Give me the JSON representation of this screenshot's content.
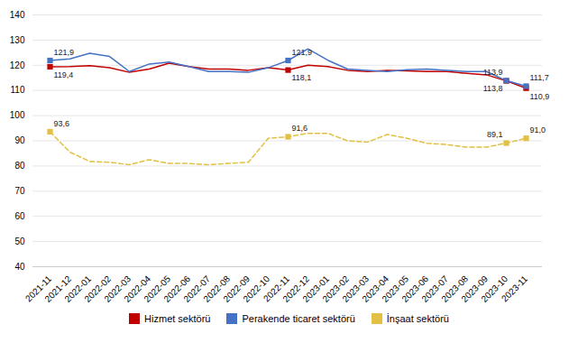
{
  "chart_data": {
    "type": "line",
    "categories": [
      "2021-11",
      "2021-12",
      "2022-01",
      "2022-02",
      "2022-03",
      "2022-04",
      "2022-05",
      "2022-06",
      "2022-07",
      "2022-08",
      "2022-09",
      "2022-10",
      "2022-11",
      "2022-12",
      "2023-01",
      "2023-02",
      "2023-03",
      "2023-04",
      "2023-05",
      "2023-06",
      "2023-07",
      "2023-08",
      "2023-09",
      "2023-10",
      "2023-11"
    ],
    "ylim": [
      40,
      140
    ],
    "yticks": [
      40,
      50,
      60,
      70,
      80,
      90,
      100,
      110,
      120,
      130,
      140
    ],
    "grid": true,
    "legend": "bottom",
    "series": [
      {
        "name": "Hizmet sektörü",
        "color": "#c00000",
        "marker": "square",
        "line_style": "solid",
        "values": [
          119.4,
          119.5,
          119.8,
          119.0,
          117.2,
          118.5,
          120.8,
          119.5,
          118.5,
          118.5,
          118.0,
          119.0,
          118.1,
          120.0,
          119.5,
          118.0,
          117.5,
          118.0,
          117.8,
          117.5,
          117.5,
          116.8,
          116.2,
          113.8,
          110.9
        ],
        "value_labels": [
          "119,4",
          null,
          null,
          null,
          null,
          null,
          null,
          null,
          null,
          null,
          null,
          null,
          "118,1",
          null,
          null,
          null,
          null,
          null,
          null,
          null,
          null,
          null,
          null,
          "113,8",
          "110,9"
        ]
      },
      {
        "name": "Perakende ticaret sektörü",
        "color": "#4472c4",
        "marker": "square",
        "line_style": "solid",
        "values": [
          121.9,
          122.5,
          124.8,
          123.5,
          117.5,
          120.5,
          121.3,
          119.5,
          117.5,
          117.5,
          117.2,
          119.0,
          121.9,
          126.5,
          122.0,
          118.5,
          118.0,
          117.5,
          118.2,
          118.5,
          118.0,
          117.5,
          117.5,
          113.9,
          111.7
        ],
        "value_labels": [
          "121,9",
          null,
          null,
          null,
          null,
          null,
          null,
          null,
          null,
          null,
          null,
          null,
          "121,9",
          null,
          null,
          null,
          null,
          null,
          null,
          null,
          null,
          null,
          null,
          "113,9",
          "111,7"
        ]
      },
      {
        "name": "İnşaat sektörü",
        "color": "#e2c044",
        "marker": "square",
        "line_style": "dashed",
        "values": [
          93.6,
          85.5,
          81.8,
          81.5,
          80.5,
          82.5,
          81.0,
          81.0,
          80.5,
          81.0,
          81.5,
          91.0,
          91.6,
          93.0,
          93.0,
          90.0,
          89.5,
          92.5,
          91.0,
          89.0,
          88.5,
          87.5,
          87.5,
          89.1,
          91.0
        ],
        "value_labels": [
          "93,6",
          null,
          null,
          null,
          null,
          null,
          null,
          null,
          null,
          null,
          null,
          null,
          "91,6",
          null,
          null,
          null,
          null,
          null,
          null,
          null,
          null,
          null,
          null,
          "89,1",
          "91,0"
        ]
      }
    ]
  }
}
